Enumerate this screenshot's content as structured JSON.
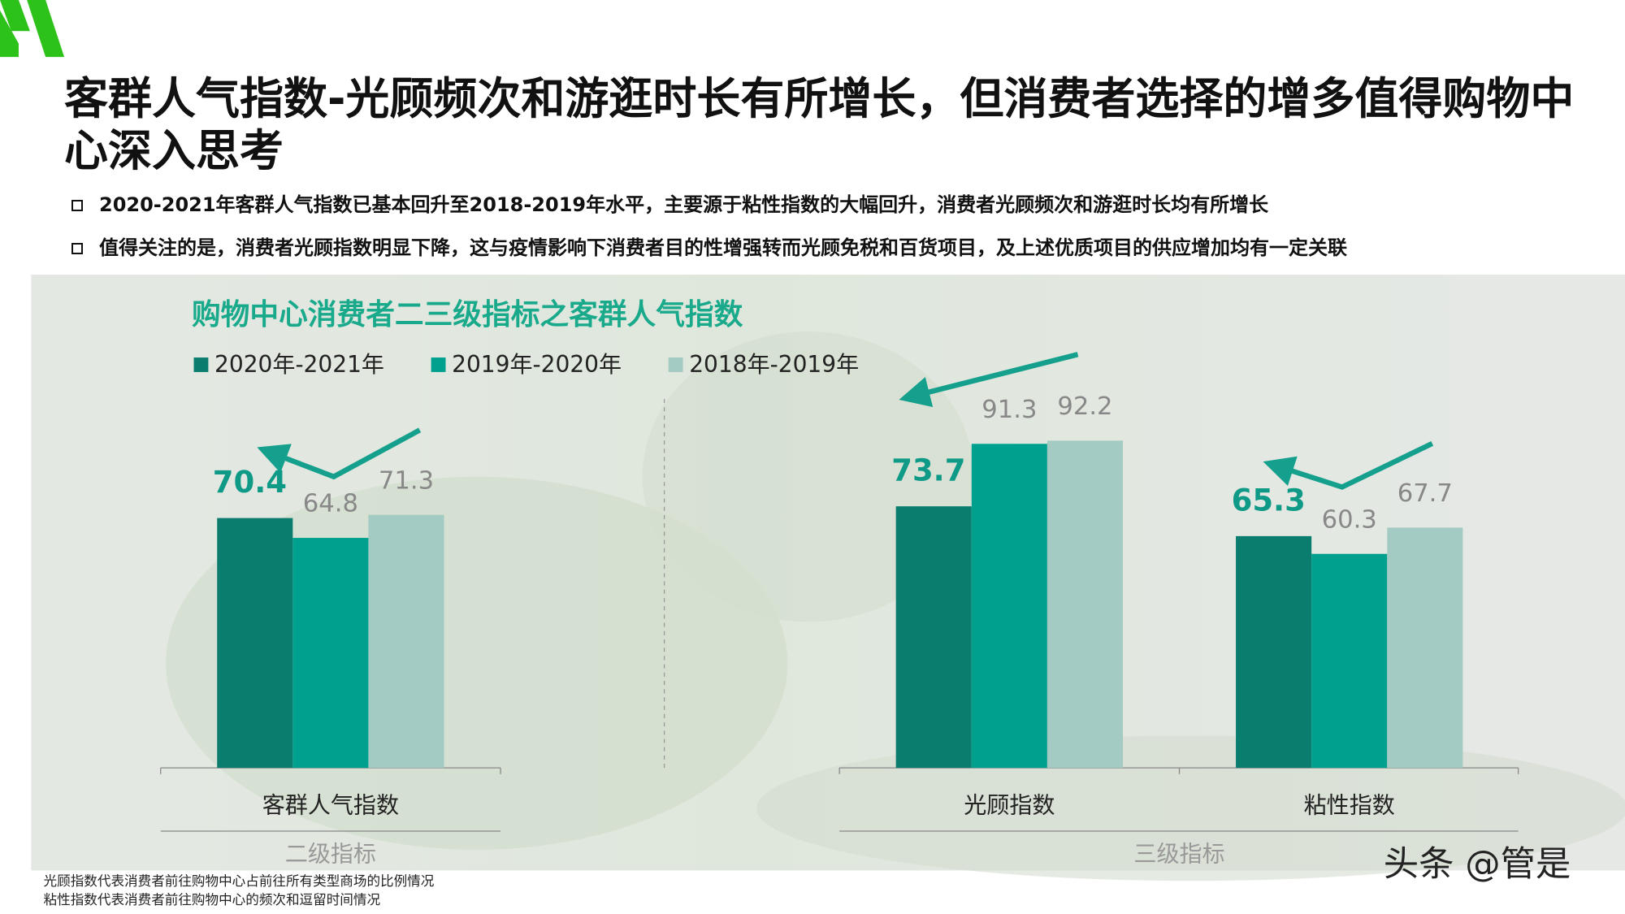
{
  "header": {
    "title": "客群人气指数-光顾频次和游逛时长有所增长，但消费者选择的增多值得购物中心深入思考",
    "bullets": [
      "2020-2021年客群人气指数已基本回升至2018-2019年水平，主要源于粘性指数的大幅回升，消费者光顾频次和游逛时长均有所增长",
      "值得关注的是，消费者光顾指数明显下降，这与疫情影响下消费者目的性增强转而光顾免税和百货项目，及上述优质项目的供应增加均有一定关联"
    ]
  },
  "chart_data": {
    "type": "bar",
    "title": "购物中心消费者二三级指标之客群人气指数",
    "categories": [
      "客群人气指数",
      "光顾指数",
      "粘性指数"
    ],
    "series": [
      {
        "name": "2020年-2021年",
        "color": "#0b7d6f",
        "values": [
          70.4,
          73.7,
          65.3
        ]
      },
      {
        "name": "2019年-2020年",
        "color": "#00a08f",
        "values": [
          64.8,
          91.3,
          60.3
        ]
      },
      {
        "name": "2018年-2019年",
        "color": "#a4cac4",
        "values": [
          71.3,
          92.2,
          67.7
        ]
      }
    ],
    "group_labels": [
      "二级指标",
      "三级指标"
    ]
  },
  "footnotes": [
    "光顾指数代表消费者前往购物中心占前往所有类型商场的比例情况",
    "粘性指数代表消费者前往购物中心的频次和逗留时间情况"
  ],
  "watermark": "头条 @管是"
}
